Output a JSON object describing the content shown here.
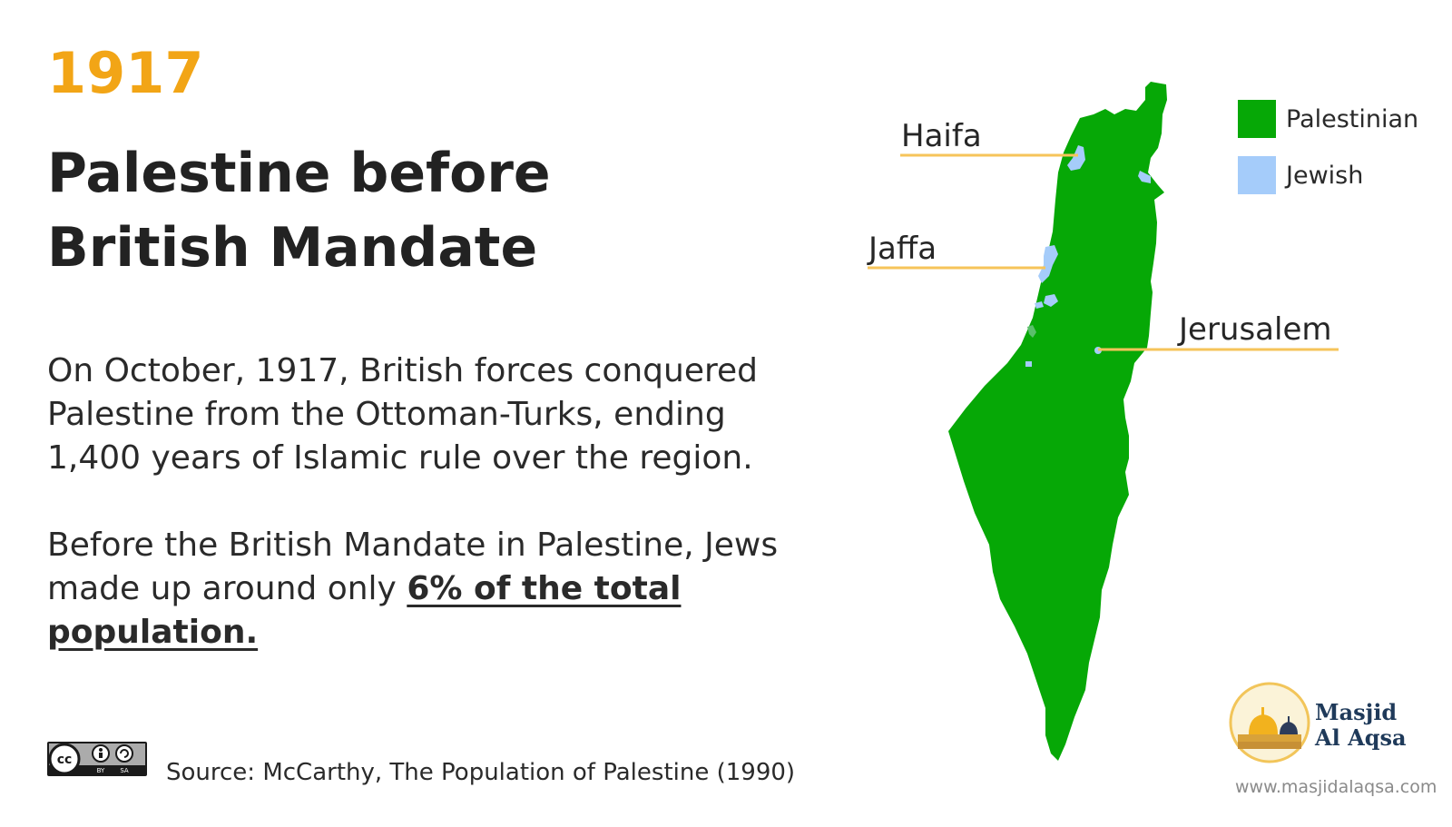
{
  "header": {
    "year": "1917",
    "title_line1": "Palestine before",
    "title_line2": "British Mandate"
  },
  "body": {
    "paragraph1": "On October, 1917, British forces conquered Palestine from the Ottoman-Turks, ending 1,400 years of Islamic rule over the region.",
    "paragraph2_start": "Before the British Mandate in Palestine, Jews made up around only ",
    "paragraph2_emphasis": "6% of the total population."
  },
  "footer": {
    "license_icon": "cc-by-sa-icon",
    "license_by": "BY",
    "license_sa": "SA",
    "source": "Source: McCarthy, The Population of Palestine (1990)"
  },
  "map": {
    "cities": {
      "haifa": "Haifa",
      "jaffa": "Jaffa",
      "jerusalem": "Jerusalem"
    },
    "legend": [
      {
        "label": "Palestinian",
        "color": "#06a806"
      },
      {
        "label": "Jewish",
        "color": "#a5ccfa"
      }
    ],
    "leader_color": "#f6c45a"
  },
  "logo": {
    "line1": "Masjid",
    "line2": "Al Aqsa",
    "website": "www.masjidalaqsa.com",
    "icon": "dome-of-the-rock-icon"
  },
  "colors": {
    "accent_year": "#f2a516",
    "land_palestinian": "#06a806",
    "land_jewish": "#a5ccfa"
  }
}
